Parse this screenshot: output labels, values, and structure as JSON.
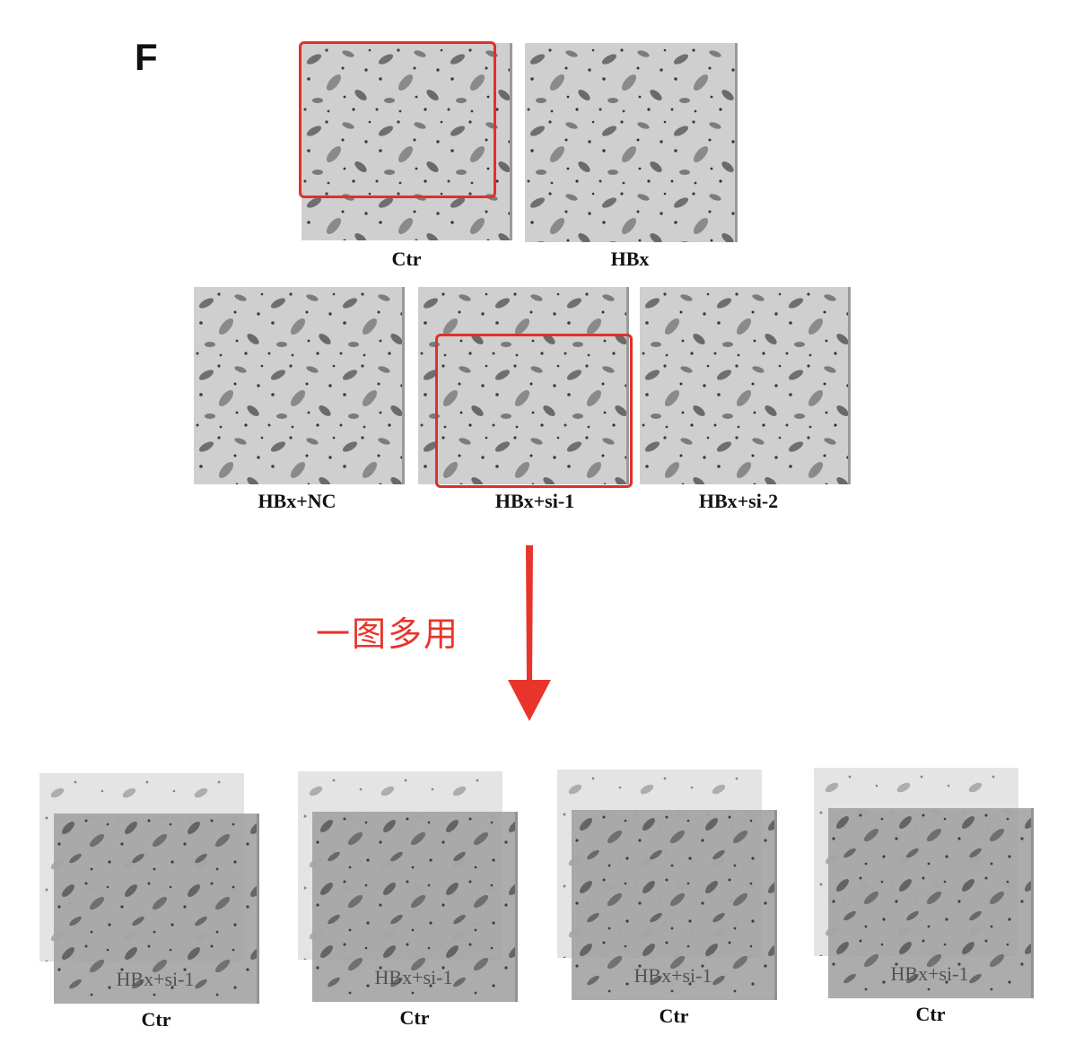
{
  "panel_letter": "F",
  "top_row": {
    "panels": [
      {
        "label": "Ctr"
      },
      {
        "label": "HBx"
      }
    ]
  },
  "middle_row": {
    "panels": [
      {
        "label": "HBx+NC"
      },
      {
        "label": "HBx+si-1"
      },
      {
        "label": "HBx+si-2"
      }
    ]
  },
  "annotation": "一图多用",
  "highlight_color": "#e0302a",
  "bottom_row": {
    "stacks": [
      {
        "overlay_text": "HBx+si-1",
        "label": "Ctr"
      },
      {
        "overlay_text": "HBx+si-1",
        "label": "Ctr"
      },
      {
        "overlay_text": "HBx+si-1",
        "label": "Ctr"
      },
      {
        "overlay_text": "HBx+si-1",
        "label": "Ctr"
      }
    ]
  }
}
